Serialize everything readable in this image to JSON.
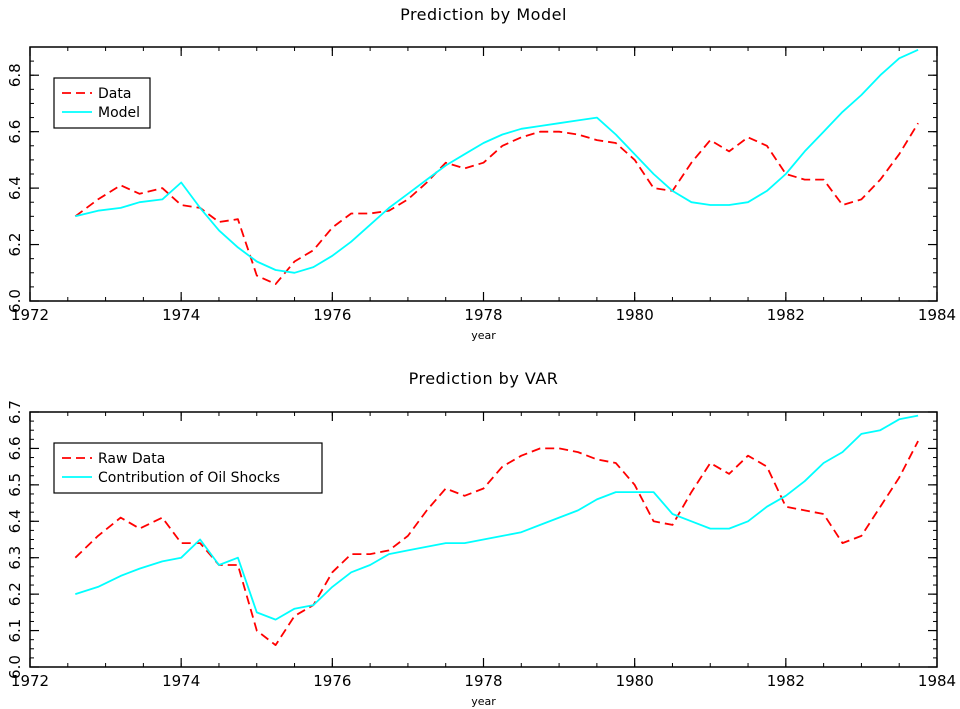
{
  "chart_data": [
    {
      "type": "line",
      "title": "Prediction by Model",
      "xlabel": "year",
      "ylabel": "",
      "xlim": [
        1972,
        1984
      ],
      "ylim": [
        6.0,
        6.9
      ],
      "xticks": [
        "1972",
        "1974",
        "1976",
        "1978",
        "1980",
        "1982",
        "1984"
      ],
      "yticks": [
        "6.0",
        "6.2",
        "6.4",
        "6.6",
        "6.8"
      ],
      "legend_position": "top-left",
      "series": [
        {
          "name": "Data",
          "color": "#ff0000",
          "style": "dashed",
          "x": [
            1972.6,
            1972.9,
            1973.2,
            1973.45,
            1973.75,
            1974.0,
            1974.25,
            1974.5,
            1974.75,
            1975.0,
            1975.25,
            1975.5,
            1975.75,
            1976.0,
            1976.25,
            1976.5,
            1976.75,
            1977.0,
            1977.25,
            1977.5,
            1977.75,
            1978.0,
            1978.25,
            1978.5,
            1978.75,
            1979.0,
            1979.25,
            1979.5,
            1979.75,
            1980.0,
            1980.25,
            1980.5,
            1980.75,
            1981.0,
            1981.25,
            1981.5,
            1981.75,
            1982.0,
            1982.25,
            1982.5,
            1982.75,
            1983.0,
            1983.25,
            1983.5,
            1983.75
          ],
          "y": [
            6.3,
            6.36,
            6.41,
            6.38,
            6.4,
            6.34,
            6.33,
            6.28,
            6.29,
            6.09,
            6.06,
            6.14,
            6.18,
            6.26,
            6.31,
            6.31,
            6.32,
            6.36,
            6.42,
            6.49,
            6.47,
            6.49,
            6.55,
            6.58,
            6.6,
            6.6,
            6.59,
            6.57,
            6.56,
            6.5,
            6.4,
            6.39,
            6.49,
            6.57,
            6.53,
            6.58,
            6.55,
            6.45,
            6.43,
            6.43,
            6.34,
            6.36,
            6.43,
            6.52,
            6.63
          ]
        },
        {
          "name": "Model",
          "color": "#00ffff",
          "style": "solid",
          "x": [
            1972.6,
            1972.9,
            1973.2,
            1973.45,
            1973.75,
            1974.0,
            1974.25,
            1974.5,
            1974.75,
            1975.0,
            1975.25,
            1975.5,
            1975.75,
            1976.0,
            1976.25,
            1976.5,
            1976.75,
            1977.0,
            1977.25,
            1977.5,
            1977.75,
            1978.0,
            1978.25,
            1978.5,
            1978.75,
            1979.0,
            1979.25,
            1979.5,
            1979.75,
            1980.0,
            1980.25,
            1980.5,
            1980.75,
            1981.0,
            1981.25,
            1981.5,
            1981.75,
            1982.0,
            1982.25,
            1982.5,
            1982.75,
            1983.0,
            1983.25,
            1983.5,
            1983.75
          ],
          "y": [
            6.3,
            6.32,
            6.33,
            6.35,
            6.36,
            6.42,
            6.33,
            6.25,
            6.19,
            6.14,
            6.11,
            6.1,
            6.12,
            6.16,
            6.21,
            6.27,
            6.33,
            6.38,
            6.43,
            6.48,
            6.52,
            6.56,
            6.59,
            6.61,
            6.62,
            6.63,
            6.64,
            6.65,
            6.59,
            6.52,
            6.45,
            6.39,
            6.35,
            6.34,
            6.34,
            6.35,
            6.39,
            6.45,
            6.53,
            6.6,
            6.67,
            6.73,
            6.8,
            6.86,
            6.89
          ]
        }
      ]
    },
    {
      "type": "line",
      "title": "Prediction by VAR",
      "xlabel": "year",
      "ylabel": "",
      "xlim": [
        1972,
        1984
      ],
      "ylim": [
        6.0,
        6.7
      ],
      "xticks": [
        "1972",
        "1974",
        "1976",
        "1978",
        "1980",
        "1982",
        "1984"
      ],
      "yticks": [
        "6.0",
        "6.1",
        "6.2",
        "6.3",
        "6.4",
        "6.5",
        "6.6",
        "6.7"
      ],
      "legend_position": "top-left",
      "series": [
        {
          "name": "Raw Data",
          "color": "#ff0000",
          "style": "dashed",
          "x": [
            1972.6,
            1972.9,
            1973.2,
            1973.45,
            1973.75,
            1974.0,
            1974.25,
            1974.5,
            1974.75,
            1975.0,
            1975.25,
            1975.5,
            1975.75,
            1976.0,
            1976.25,
            1976.5,
            1976.75,
            1977.0,
            1977.25,
            1977.5,
            1977.75,
            1978.0,
            1978.25,
            1978.5,
            1978.75,
            1979.0,
            1979.25,
            1979.5,
            1979.75,
            1980.0,
            1980.25,
            1980.5,
            1980.75,
            1981.0,
            1981.25,
            1981.5,
            1981.75,
            1982.0,
            1982.25,
            1982.5,
            1982.75,
            1983.0,
            1983.25,
            1983.5,
            1983.75
          ],
          "y": [
            6.3,
            6.36,
            6.41,
            6.38,
            6.41,
            6.34,
            6.34,
            6.28,
            6.28,
            6.1,
            6.06,
            6.14,
            6.17,
            6.26,
            6.31,
            6.31,
            6.32,
            6.36,
            6.43,
            6.49,
            6.47,
            6.49,
            6.55,
            6.58,
            6.6,
            6.6,
            6.59,
            6.57,
            6.56,
            6.5,
            6.4,
            6.39,
            6.48,
            6.56,
            6.53,
            6.58,
            6.55,
            6.44,
            6.43,
            6.42,
            6.34,
            6.36,
            6.44,
            6.52,
            6.62
          ]
        },
        {
          "name": "Contribution of Oil Shocks",
          "color": "#00ffff",
          "style": "solid",
          "x": [
            1972.6,
            1972.9,
            1973.2,
            1973.45,
            1973.75,
            1974.0,
            1974.25,
            1974.5,
            1974.75,
            1975.0,
            1975.25,
            1975.5,
            1975.75,
            1976.0,
            1976.25,
            1976.5,
            1976.75,
            1977.0,
            1977.25,
            1977.5,
            1977.75,
            1978.0,
            1978.25,
            1978.5,
            1978.75,
            1979.0,
            1979.25,
            1979.5,
            1979.75,
            1980.0,
            1980.25,
            1980.5,
            1980.75,
            1981.0,
            1981.25,
            1981.5,
            1981.75,
            1982.0,
            1982.25,
            1982.5,
            1982.75,
            1983.0,
            1983.25,
            1983.5,
            1983.75
          ],
          "y": [
            6.2,
            6.22,
            6.25,
            6.27,
            6.29,
            6.3,
            6.35,
            6.28,
            6.3,
            6.15,
            6.13,
            6.16,
            6.17,
            6.22,
            6.26,
            6.28,
            6.31,
            6.32,
            6.33,
            6.34,
            6.34,
            6.35,
            6.36,
            6.37,
            6.39,
            6.41,
            6.43,
            6.46,
            6.48,
            6.48,
            6.48,
            6.42,
            6.4,
            6.38,
            6.38,
            6.4,
            6.44,
            6.47,
            6.51,
            6.56,
            6.59,
            6.64,
            6.65,
            6.68,
            6.69
          ]
        }
      ]
    }
  ]
}
